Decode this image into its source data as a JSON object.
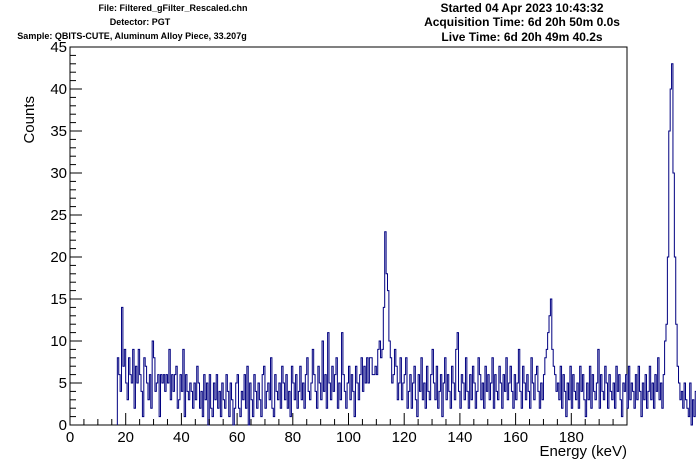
{
  "header": {
    "file": "File: Filtered_gFilter_Rescaled.chn",
    "detector": "Detector: PGT",
    "sample": "Sample: QBITS-CUTE, Aluminum Alloy Piece, 33.207g",
    "started": "Started 04 Apr 2023 10:43:32",
    "acquisition": "Acquisition Time: 6d 20h 50m 0.0s",
    "live": "Live Time: 6d 20h 49m 40.2s"
  },
  "colors": {
    "line": "#000080",
    "axis": "#000000",
    "background": "#ffffff"
  },
  "chart_data": {
    "type": "line",
    "title": "",
    "xlabel": "Energy (keV)",
    "ylabel": "Counts",
    "xlim": [
      0,
      200
    ],
    "ylim": [
      0,
      45
    ],
    "xticks": [
      0,
      20,
      40,
      60,
      80,
      100,
      120,
      140,
      160,
      180
    ],
    "yticks": [
      0,
      5,
      10,
      15,
      20,
      25,
      30,
      35,
      40,
      45
    ],
    "grid": false,
    "legend": "none",
    "bin_width_keV": 0.5,
    "series": [
      {
        "x_start": 17.0,
        "values": [
          8,
          6,
          4,
          14,
          7,
          9,
          5,
          3,
          8,
          6,
          5,
          9,
          2,
          7,
          5,
          9,
          6,
          4,
          1,
          8,
          7,
          5,
          3,
          6,
          2,
          10,
          8,
          4,
          5,
          6,
          1,
          6,
          5,
          6,
          4,
          6,
          5,
          9,
          3,
          6,
          4,
          6,
          7,
          2,
          3,
          6,
          4,
          9,
          1,
          6,
          4,
          3,
          5,
          4,
          2,
          5,
          3,
          7,
          5,
          2,
          4,
          1,
          6,
          3,
          5,
          0,
          6,
          2,
          1,
          5,
          3,
          6,
          2,
          4,
          1,
          5,
          3,
          2,
          6,
          4,
          1,
          5,
          3,
          0,
          2,
          5,
          6,
          2,
          1,
          4,
          3,
          6,
          2,
          7,
          0,
          5,
          3,
          1,
          6,
          4,
          2,
          5,
          3,
          1,
          6,
          7,
          2,
          4,
          5,
          3,
          8,
          2,
          1,
          6,
          4,
          3,
          5,
          2,
          7,
          5,
          3,
          6,
          2,
          4,
          1,
          7,
          5,
          3,
          6,
          2,
          4,
          7,
          3,
          5,
          2,
          6,
          8,
          4,
          3,
          5,
          9,
          6,
          4,
          2,
          7,
          5,
          3,
          10,
          4,
          6,
          2,
          11,
          5,
          3,
          7,
          4,
          6,
          8,
          2,
          5,
          3,
          11,
          6,
          4,
          2,
          5,
          7,
          3,
          6,
          4,
          1,
          7,
          5,
          3,
          6,
          8,
          4,
          7,
          5,
          8,
          5,
          8,
          8,
          6,
          6,
          7,
          6,
          9,
          10,
          8,
          9,
          14,
          23,
          18,
          16,
          10,
          8,
          5,
          6,
          9,
          7,
          3,
          5,
          8,
          3,
          5,
          6,
          8,
          2,
          4,
          6,
          2,
          5,
          7,
          3,
          1,
          6,
          4,
          8,
          3,
          5,
          2,
          7,
          4,
          3,
          6,
          9,
          5,
          3,
          7,
          2,
          4,
          6,
          1,
          5,
          8,
          3,
          6,
          4,
          2,
          7,
          5,
          3,
          9,
          11,
          4,
          2,
          6,
          5,
          3,
          8,
          4,
          2,
          6,
          3,
          7,
          5,
          2,
          4,
          8,
          6,
          3,
          5,
          2,
          7,
          4,
          6,
          3,
          5,
          8,
          2,
          6,
          4,
          3,
          7,
          5,
          2,
          6,
          4,
          8,
          3,
          5,
          7,
          4,
          2,
          6,
          3,
          5,
          9,
          4,
          2,
          7,
          5,
          3,
          6,
          4,
          2,
          8,
          5,
          3,
          6,
          7,
          4,
          2,
          5,
          3,
          6,
          8,
          9,
          11,
          13,
          15,
          9,
          7,
          6,
          4,
          5,
          3,
          7,
          2,
          6,
          4,
          1,
          5,
          3,
          7,
          2,
          6,
          4,
          3,
          5,
          2,
          7,
          4,
          6,
          3,
          1,
          5,
          3,
          7,
          2,
          6,
          4,
          3,
          5,
          9,
          2,
          6,
          4,
          3,
          7,
          5,
          2,
          6,
          4,
          3,
          5,
          2,
          7,
          4,
          6,
          3,
          1,
          5,
          4,
          6,
          2,
          7,
          3,
          5,
          4,
          2,
          6,
          3,
          7,
          4,
          1,
          5,
          3,
          6,
          2,
          4,
          7,
          3,
          5,
          2,
          6,
          4,
          8,
          3,
          5,
          2,
          6,
          10,
          12,
          20,
          35,
          40,
          43,
          30,
          20,
          12,
          7,
          5,
          3,
          4,
          2,
          5,
          3,
          2,
          1,
          5,
          0,
          3,
          1,
          4,
          2,
          0,
          6,
          3,
          4,
          2,
          9,
          3,
          5,
          1,
          4,
          2,
          3,
          1,
          2
        ]
      }
    ]
  }
}
